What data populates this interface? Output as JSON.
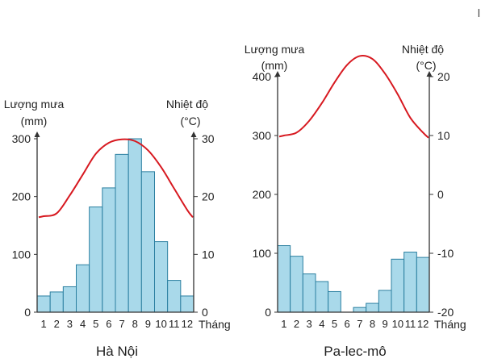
{
  "corner_mark": "l",
  "chart_data": [
    {
      "type": "bar+line",
      "title": "Hà Nội",
      "left_axis": {
        "label_line1": "Lượng mưa",
        "label_line2": "(mm)",
        "ylim": [
          0,
          300
        ],
        "ticks": [
          "0",
          "100",
          "200",
          "300"
        ]
      },
      "right_axis": {
        "label_line1": "Nhiệt độ",
        "label_line2": "(°C)",
        "ylim": [
          0,
          30
        ],
        "ticks": [
          "0",
          "10",
          "20",
          "30"
        ]
      },
      "xlabel": "Tháng",
      "categories": [
        "1",
        "2",
        "3",
        "4",
        "5",
        "6",
        "7",
        "8",
        "9",
        "10",
        "11",
        "12"
      ],
      "rainfall_mm": [
        28,
        35,
        44,
        82,
        182,
        215,
        273,
        300,
        243,
        122,
        55,
        28
      ],
      "temperature_c": [
        16.6,
        17.1,
        20.2,
        23.8,
        27.4,
        29.3,
        29.9,
        29.6,
        28.0,
        25.1,
        21.4,
        17.7
      ],
      "colors": {
        "bar": "#a9d9ea",
        "bar_stroke": "#2b7fa0",
        "line": "#d71920",
        "axis": "#333333"
      }
    },
    {
      "type": "bar+line",
      "title": "Pa-lec-mô",
      "left_axis": {
        "label_line1": "Lượng mưa",
        "label_line2": "(mm)",
        "ylim": [
          0,
          400
        ],
        "ticks": [
          "0",
          "100",
          "200",
          "300",
          "400"
        ]
      },
      "right_axis": {
        "label_line1": "Nhiệt độ",
        "label_line2": "(°C)",
        "ylim": [
          -20,
          20
        ],
        "ticks": [
          "-20",
          "-10",
          "0",
          "10",
          "20"
        ]
      },
      "xlabel": "Tháng",
      "categories": [
        "1",
        "2",
        "3",
        "4",
        "5",
        "6",
        "7",
        "8",
        "9",
        "10",
        "11",
        "12"
      ],
      "rainfall_mm": [
        113,
        95,
        65,
        52,
        35,
        0,
        8,
        15,
        37,
        90,
        102,
        93
      ],
      "temperature_c": [
        10.0,
        10.5,
        12.5,
        15.5,
        19.0,
        22.0,
        23.5,
        23.0,
        20.5,
        17.0,
        13.0,
        10.5
      ],
      "colors": {
        "bar": "#a9d9ea",
        "bar_stroke": "#2b7fa0",
        "line": "#d71920",
        "axis": "#333333"
      }
    }
  ]
}
